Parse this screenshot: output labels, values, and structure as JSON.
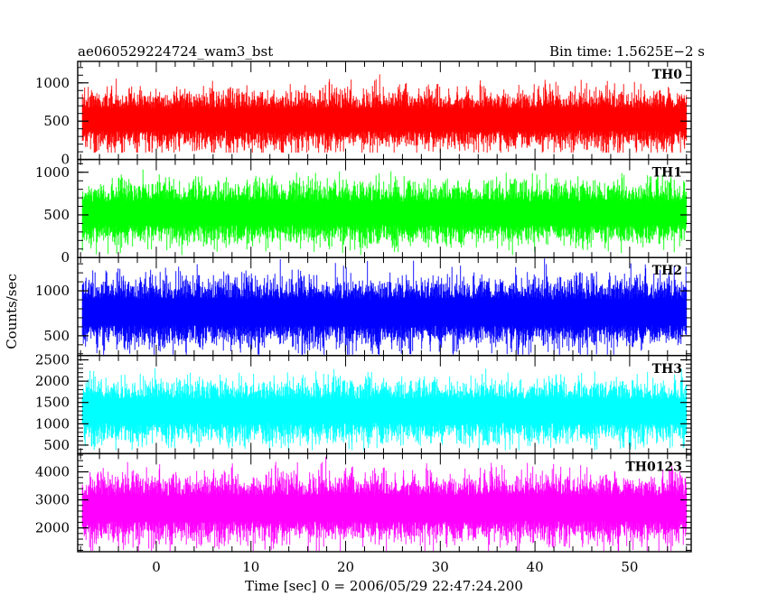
{
  "header": {
    "title": "ae060529224724_wam3_bst",
    "bin_time": "Bin time: 1.5625E−2 s"
  },
  "chart_data": {
    "type": "line",
    "xlabel": "Time [sec] 0 = 2006/05/29 22:47:24.200",
    "ylabel": "Counts/sec",
    "xlim": [
      -8.3,
      56.5
    ],
    "x_ticks": [
      0,
      10,
      20,
      30,
      40,
      50
    ],
    "data_x_range": [
      -7.8,
      56.0
    ],
    "panels": [
      {
        "name": "TH0",
        "color": "#ff0000",
        "ylim": [
          0,
          1280
        ],
        "y_ticks": [
          0,
          500,
          1000
        ],
        "base": 520,
        "spread": 160,
        "low": 90,
        "high": 1280
      },
      {
        "name": "TH1",
        "color": "#00ff00",
        "ylim": [
          0,
          1150
        ],
        "y_ticks": [
          0,
          500,
          1000
        ],
        "base": 520,
        "spread": 150,
        "low": 30,
        "high": 1150
      },
      {
        "name": "TH2",
        "color": "#0000ff",
        "ylim": [
          280,
          1370
        ],
        "y_ticks": [
          500,
          1000
        ],
        "base": 760,
        "spread": 160,
        "low": 290,
        "high": 1370
      },
      {
        "name": "TH3",
        "color": "#00ffff",
        "ylim": [
          300,
          2600
        ],
        "y_ticks": [
          500,
          1000,
          1500,
          2000,
          2500
        ],
        "base": 1300,
        "spread": 300,
        "low": 380,
        "high": 2600
      },
      {
        "name": "TH0123",
        "color": "#ff00ff",
        "ylim": [
          1150,
          4650
        ],
        "y_ticks": [
          2000,
          3000,
          4000
        ],
        "base": 2700,
        "spread": 500,
        "low": 1180,
        "high": 4650
      }
    ]
  }
}
